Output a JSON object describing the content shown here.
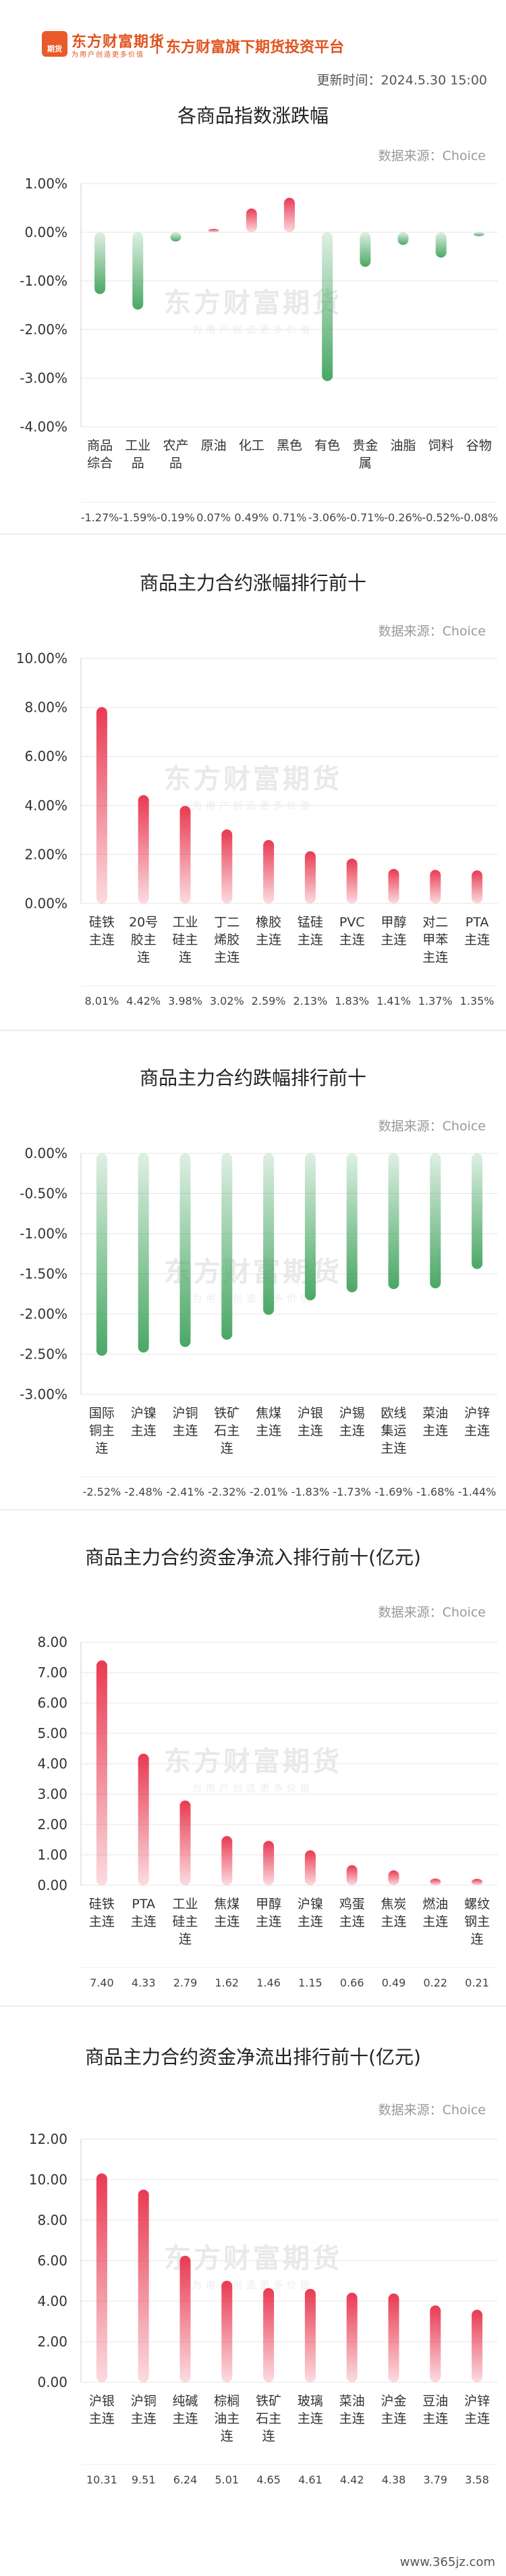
{
  "header": {
    "logo_text": "东方财富期货",
    "logo_badge": "期货",
    "slogan": "为用户创造更多价值",
    "platform": "东方财富旗下期货投资平台",
    "update_time": "更新时间：2024.5.30 15:00"
  },
  "brand": {
    "accent": "#e0541f",
    "up": "#e93a52",
    "down": "#4aa865"
  },
  "source_label": "数据来源：Choice",
  "watermark": {
    "text": "东方财富期货",
    "sub": "为用户创造更多价值"
  },
  "footer": "www.365jz.com",
  "chart_data": [
    {
      "type": "bar",
      "title": "各商品指数涨跌幅",
      "categories": [
        [
          "商品",
          "综合"
        ],
        [
          "工业",
          "品"
        ],
        [
          "农产",
          "品"
        ],
        [
          "原油"
        ],
        [
          "化工"
        ],
        [
          "黑色"
        ],
        [
          "有色"
        ],
        [
          "贵金",
          "属"
        ],
        [
          "油脂"
        ],
        [
          "饲料"
        ],
        [
          "谷物"
        ]
      ],
      "values": [
        -1.27,
        -1.59,
        -0.19,
        0.07,
        0.49,
        0.71,
        -3.06,
        -0.71,
        -0.26,
        -0.52,
        -0.08
      ],
      "value_labels": [
        "-1.27%",
        "-1.59%",
        "-0.19%",
        "0.07%",
        "0.49%",
        "0.71%",
        "-3.06%",
        "-0.71%",
        "-0.26%",
        "-0.52%",
        "-0.08%"
      ],
      "yticks": [
        "1.00%",
        "0.00%",
        "-1.00%",
        "-2.00%",
        "-3.00%",
        "-4.00%"
      ],
      "ylim": [
        -4,
        1
      ],
      "ylabel": "",
      "xlabel": "",
      "grid": true
    },
    {
      "type": "bar",
      "title": "商品主力合约涨幅排行前十",
      "categories": [
        [
          "硅铁",
          "主连"
        ],
        [
          "20号",
          "胶主",
          "连"
        ],
        [
          "工业",
          "硅主",
          "连"
        ],
        [
          "丁二",
          "烯胶",
          "主连"
        ],
        [
          "橡胶",
          "主连"
        ],
        [
          "锰硅",
          "主连"
        ],
        [
          "PVC",
          "主连"
        ],
        [
          "甲醇",
          "主连"
        ],
        [
          "对二",
          "甲苯",
          "主连"
        ],
        [
          "PTA",
          "主连"
        ]
      ],
      "values": [
        8.01,
        4.42,
        3.98,
        3.02,
        2.59,
        2.13,
        1.83,
        1.41,
        1.37,
        1.35
      ],
      "value_labels": [
        "8.01%",
        "4.42%",
        "3.98%",
        "3.02%",
        "2.59%",
        "2.13%",
        "1.83%",
        "1.41%",
        "1.37%",
        "1.35%"
      ],
      "yticks": [
        "10.00%",
        "8.00%",
        "6.00%",
        "4.00%",
        "2.00%",
        "0.00%"
      ],
      "ylim": [
        0,
        10
      ],
      "ylabel": "",
      "xlabel": "",
      "grid": true
    },
    {
      "type": "bar",
      "title": "商品主力合约跌幅排行前十",
      "categories": [
        [
          "国际",
          "铜主",
          "连"
        ],
        [
          "沪镍",
          "主连"
        ],
        [
          "沪铜",
          "主连"
        ],
        [
          "铁矿",
          "石主",
          "连"
        ],
        [
          "焦煤",
          "主连"
        ],
        [
          "沪银",
          "主连"
        ],
        [
          "沪锡",
          "主连"
        ],
        [
          "欧线",
          "集运",
          "主连"
        ],
        [
          "菜油",
          "主连"
        ],
        [
          "沪锌",
          "主连"
        ]
      ],
      "values": [
        -2.52,
        -2.48,
        -2.41,
        -2.32,
        -2.01,
        -1.83,
        -1.73,
        -1.69,
        -1.68,
        -1.44
      ],
      "value_labels": [
        "-2.52%",
        "-2.48%",
        "-2.41%",
        "-2.32%",
        "-2.01%",
        "-1.83%",
        "-1.73%",
        "-1.69%",
        "-1.68%",
        "-1.44%"
      ],
      "yticks": [
        "0.00%",
        "-0.50%",
        "-1.00%",
        "-1.50%",
        "-2.00%",
        "-2.50%",
        "-3.00%"
      ],
      "ylim": [
        -3,
        0
      ],
      "ylabel": "",
      "xlabel": "",
      "grid": true
    },
    {
      "type": "bar",
      "title": "商品主力合约资金净流入排行前十(亿元)",
      "categories": [
        [
          "硅铁",
          "主连"
        ],
        [
          "PTA",
          "主连"
        ],
        [
          "工业",
          "硅主",
          "连"
        ],
        [
          "焦煤",
          "主连"
        ],
        [
          "甲醇",
          "主连"
        ],
        [
          "沪镍",
          "主连"
        ],
        [
          "鸡蛋",
          "主连"
        ],
        [
          "焦炭",
          "主连"
        ],
        [
          "燃油",
          "主连"
        ],
        [
          "螺纹",
          "钢主",
          "连"
        ]
      ],
      "values": [
        7.4,
        4.33,
        2.79,
        1.62,
        1.46,
        1.15,
        0.66,
        0.49,
        0.22,
        0.21
      ],
      "value_labels": [
        "7.40",
        "4.33",
        "2.79",
        "1.62",
        "1.46",
        "1.15",
        "0.66",
        "0.49",
        "0.22",
        "0.21"
      ],
      "yticks": [
        "8.00",
        "7.00",
        "6.00",
        "5.00",
        "4.00",
        "3.00",
        "2.00",
        "1.00",
        "0.00"
      ],
      "ylim": [
        0,
        8
      ],
      "ylabel": "",
      "xlabel": "",
      "grid": true
    },
    {
      "type": "bar",
      "title": "商品主力合约资金净流出排行前十(亿元)",
      "categories": [
        [
          "沪银",
          "主连"
        ],
        [
          "沪铜",
          "主连"
        ],
        [
          "纯碱",
          "主连"
        ],
        [
          "棕榈",
          "油主",
          "连"
        ],
        [
          "铁矿",
          "石主",
          "连"
        ],
        [
          "玻璃",
          "主连"
        ],
        [
          "菜油",
          "主连"
        ],
        [
          "沪金",
          "主连"
        ],
        [
          "豆油",
          "主连"
        ],
        [
          "沪锌",
          "主连"
        ]
      ],
      "values": [
        10.31,
        9.51,
        6.24,
        5.01,
        4.65,
        4.61,
        4.42,
        4.38,
        3.79,
        3.58
      ],
      "value_labels": [
        "10.31",
        "9.51",
        "6.24",
        "5.01",
        "4.65",
        "4.61",
        "4.42",
        "4.38",
        "3.79",
        "3.58"
      ],
      "yticks": [
        "12.00",
        "10.00",
        "8.00",
        "6.00",
        "4.00",
        "2.00",
        "0.00"
      ],
      "ylim": [
        0,
        12
      ],
      "ylabel": "",
      "xlabel": "",
      "grid": true
    }
  ]
}
